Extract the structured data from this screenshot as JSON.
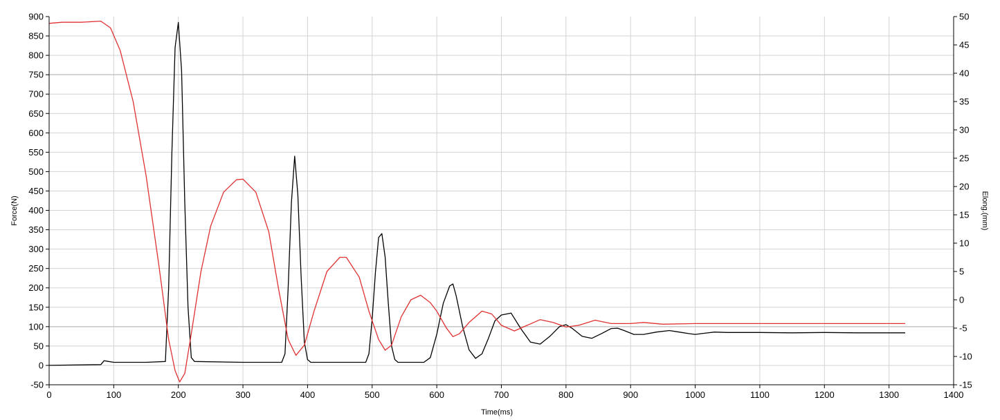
{
  "chart_data": {
    "type": "line",
    "title": "",
    "xlabel": "Time(ms)",
    "ylabel": "Force(N)",
    "y2label": "Elong.(mm)",
    "xlim": [
      0,
      1400
    ],
    "ylim": [
      -50,
      900
    ],
    "y2lim": [
      -15,
      50
    ],
    "xticks": [
      0,
      100,
      200,
      300,
      400,
      500,
      600,
      700,
      800,
      900,
      1000,
      1100,
      1200,
      1300,
      1400
    ],
    "yticks": [
      -50,
      0,
      50,
      100,
      150,
      200,
      250,
      300,
      350,
      400,
      450,
      500,
      550,
      600,
      650,
      700,
      750,
      800,
      850,
      900
    ],
    "y2ticks": [
      -15,
      -10,
      -5,
      0,
      5,
      10,
      15,
      20,
      25,
      30,
      35,
      40,
      45,
      50
    ],
    "grid": true,
    "series": [
      {
        "axis": "left",
        "color": "#000000",
        "x": [
          0,
          80,
          85,
          100,
          150,
          180,
          185,
          190,
          195,
          200,
          205,
          210,
          215,
          220,
          225,
          300,
          360,
          365,
          370,
          375,
          380,
          385,
          390,
          395,
          400,
          405,
          410,
          490,
          495,
          500,
          505,
          510,
          515,
          520,
          525,
          530,
          535,
          540,
          550,
          580,
          590,
          600,
          610,
          620,
          625,
          630,
          640,
          650,
          660,
          670,
          680,
          690,
          700,
          715,
          730,
          745,
          760,
          775,
          790,
          800,
          810,
          825,
          840,
          855,
          870,
          880,
          890,
          905,
          920,
          940,
          960,
          975,
          990,
          1000,
          1010,
          1030,
          1050,
          1070,
          1100,
          1150,
          1200,
          1250,
          1300,
          1325
        ],
        "values": [
          0,
          2,
          12,
          8,
          8,
          10,
          200,
          550,
          820,
          885,
          760,
          420,
          150,
          20,
          10,
          8,
          8,
          30,
          200,
          420,
          540,
          440,
          230,
          60,
          15,
          8,
          8,
          8,
          30,
          120,
          240,
          330,
          340,
          280,
          160,
          50,
          15,
          8,
          8,
          8,
          20,
          80,
          160,
          205,
          210,
          180,
          100,
          40,
          18,
          30,
          70,
          115,
          130,
          135,
          95,
          60,
          55,
          75,
          100,
          105,
          95,
          75,
          70,
          82,
          95,
          96,
          90,
          80,
          80,
          86,
          90,
          86,
          82,
          80,
          82,
          86,
          85,
          85,
          85,
          84,
          85,
          84,
          84,
          84
        ]
      },
      {
        "axis": "right",
        "color": "#e03030",
        "x": [
          0,
          20,
          50,
          80,
          95,
          110,
          130,
          150,
          170,
          185,
          195,
          202,
          210,
          220,
          235,
          250,
          270,
          290,
          300,
          320,
          340,
          355,
          370,
          382,
          395,
          410,
          430,
          450,
          460,
          480,
          495,
          510,
          520,
          530,
          545,
          560,
          575,
          590,
          600,
          615,
          625,
          635,
          650,
          670,
          685,
          700,
          720,
          740,
          760,
          780,
          800,
          820,
          845,
          870,
          900,
          920,
          950,
          1000,
          1100,
          1200,
          1325
        ],
        "values": [
          48.8,
          49,
          49,
          49.2,
          48,
          44,
          35,
          22,
          6,
          -7,
          -12.5,
          -14.5,
          -13,
          -6,
          5,
          13,
          19,
          21.2,
          21.3,
          19,
          12,
          2,
          -7,
          -9.8,
          -8,
          -2,
          5,
          7.5,
          7.5,
          4,
          -2,
          -7,
          -8.9,
          -8,
          -3,
          0,
          0.8,
          -0.5,
          -2,
          -5,
          -6.5,
          -6,
          -4,
          -2,
          -2.5,
          -4.5,
          -5.5,
          -4.5,
          -3.5,
          -4,
          -4.8,
          -4.5,
          -3.6,
          -4.2,
          -4.2,
          -4,
          -4.3,
          -4.2,
          -4.2,
          -4.2,
          -4.2
        ]
      }
    ]
  }
}
